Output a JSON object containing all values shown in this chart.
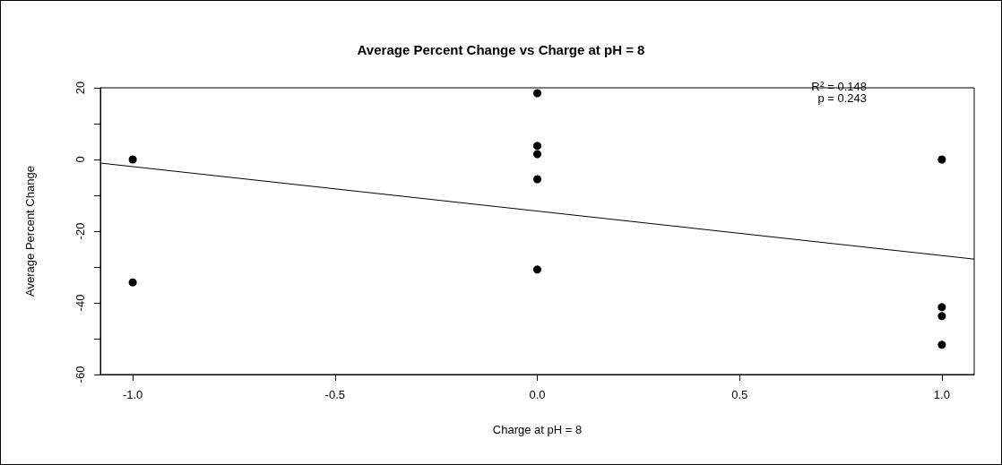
{
  "chart_data": {
    "type": "scatter",
    "title": "Average Percent Change vs Charge at pH = 8",
    "xlabel": "Charge at pH = 8",
    "ylabel": "Average Percent Change",
    "annotations": [
      "R$^{2}$ = 0.148",
      "p = 0.243"
    ],
    "series": [
      {
        "color": "#000000",
        "x": [
          -1,
          -1,
          0,
          0,
          0,
          0,
          0,
          1,
          1,
          1,
          1
        ],
        "values": [
          0,
          -34.3,
          18.5,
          3.8,
          1.5,
          -5.5,
          -30.7,
          0,
          -41.2,
          -43.7,
          -51.7
        ]
      },
      {
        "type": "line",
        "marker": "none",
        "color": "#000000",
        "x": [
          -1.08,
          1.08
        ],
        "values": [
          -1.0,
          -27.8
        ]
      }
    ],
    "xlim": [
      -1.08,
      1.08
    ],
    "xticks": [
      {
        "value": -1,
        "label": "-1.0"
      },
      {
        "value": -0.5,
        "label": "-0.5"
      },
      {
        "value": 0,
        "label": "0.0"
      },
      {
        "value": 0.5,
        "label": "0.5"
      },
      {
        "value": 1,
        "label": "1.0"
      }
    ],
    "ylim": [
      -60,
      20
    ],
    "yticks": [
      -60,
      {
        "value": -50,
        "label": null
      },
      -40,
      {
        "value": -30,
        "label": null
      },
      -20,
      {
        "value": -10,
        "label": null
      },
      0,
      {
        "value": 10,
        "label": null
      },
      20
    ],
    "grid": false,
    "marker": "circle"
  }
}
